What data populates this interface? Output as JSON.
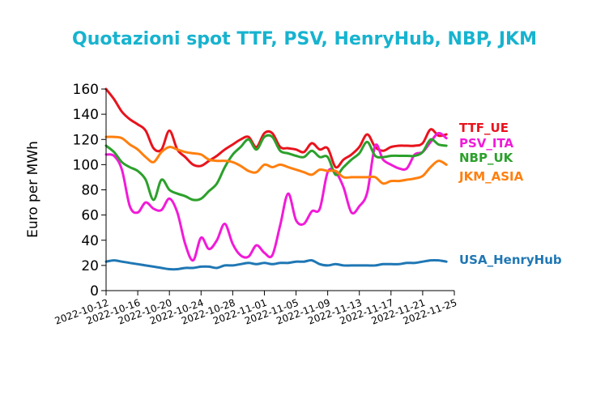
{
  "chart_data": {
    "type": "line",
    "title": "Quotazioni spot TTF, PSV, HenryHub, NBP, JKM",
    "ylabel": "Euro per MWh",
    "xlabel": "",
    "ylim": [
      0,
      160
    ],
    "yticks": [
      0,
      20,
      40,
      60,
      80,
      100,
      120,
      140,
      160
    ],
    "xticks": [
      "2022-10-12",
      "2022-10-16",
      "2022-10-20",
      "2022-10-24",
      "2022-10-28",
      "2022-11-01",
      "2022-11-05",
      "2022-11-09",
      "2022-11-13",
      "2022-11-17",
      "2022-11-21",
      "2022-11-25"
    ],
    "xlim": [
      "2022-10-12",
      "2022-11-25"
    ],
    "grid": false,
    "legend": "right-inline",
    "series": [
      {
        "name": "TTF_UE",
        "color": "#e8131d",
        "x": [
          "2022-10-12",
          "2022-10-13",
          "2022-10-14",
          "2022-10-15",
          "2022-10-16",
          "2022-10-17",
          "2022-10-18",
          "2022-10-19",
          "2022-10-20",
          "2022-10-21",
          "2022-10-22",
          "2022-10-23",
          "2022-10-24",
          "2022-10-25",
          "2022-10-26",
          "2022-10-27",
          "2022-10-28",
          "2022-10-29",
          "2022-10-30",
          "2022-10-31",
          "2022-11-01",
          "2022-11-02",
          "2022-11-03",
          "2022-11-04",
          "2022-11-05",
          "2022-11-06",
          "2022-11-07",
          "2022-11-08",
          "2022-11-09",
          "2022-11-10",
          "2022-11-11",
          "2022-11-12",
          "2022-11-13",
          "2022-11-14",
          "2022-11-15",
          "2022-11-16",
          "2022-11-17",
          "2022-11-18",
          "2022-11-19",
          "2022-11-20",
          "2022-11-21",
          "2022-11-22",
          "2022-11-23",
          "2022-11-24"
        ],
        "values": [
          160,
          152,
          142,
          136,
          132,
          127,
          113,
          112,
          127,
          112,
          106,
          100,
          99,
          103,
          107,
          112,
          116,
          120,
          122,
          114,
          125,
          125,
          114,
          113,
          112,
          110,
          117,
          112,
          113,
          98,
          104,
          108,
          114,
          124,
          114,
          111,
          114,
          115,
          115,
          115,
          117,
          128,
          123,
          124
        ]
      },
      {
        "name": "PSV_ITA",
        "color": "#f21ad8",
        "x": [
          "2022-10-12",
          "2022-10-13",
          "2022-10-14",
          "2022-10-15",
          "2022-10-16",
          "2022-10-17",
          "2022-10-18",
          "2022-10-19",
          "2022-10-20",
          "2022-10-21",
          "2022-10-22",
          "2022-10-23",
          "2022-10-24",
          "2022-10-25",
          "2022-10-26",
          "2022-10-27",
          "2022-10-28",
          "2022-10-29",
          "2022-10-30",
          "2022-10-31",
          "2022-11-01",
          "2022-11-02",
          "2022-11-03",
          "2022-11-04",
          "2022-11-05",
          "2022-11-06",
          "2022-11-07",
          "2022-11-08",
          "2022-11-09",
          "2022-11-10",
          "2022-11-11",
          "2022-11-12",
          "2022-11-13",
          "2022-11-14",
          "2022-11-15",
          "2022-11-16",
          "2022-11-17",
          "2022-11-18",
          "2022-11-19",
          "2022-11-20",
          "2022-11-21",
          "2022-11-22",
          "2022-11-23",
          "2022-11-24"
        ],
        "values": [
          108,
          107,
          96,
          67,
          62,
          70,
          65,
          64,
          73,
          62,
          37,
          24,
          42,
          33,
          40,
          53,
          37,
          28,
          27,
          36,
          30,
          28,
          52,
          77,
          56,
          53,
          63,
          65,
          94,
          94,
          82,
          62,
          67,
          78,
          115,
          104,
          100,
          97,
          97,
          108,
          110,
          118,
          125,
          121
        ]
      },
      {
        "name": "NBP_UK",
        "color": "#2ca02c",
        "x": [
          "2022-10-12",
          "2022-10-13",
          "2022-10-14",
          "2022-10-15",
          "2022-10-16",
          "2022-10-17",
          "2022-10-18",
          "2022-10-19",
          "2022-10-20",
          "2022-10-21",
          "2022-10-22",
          "2022-10-23",
          "2022-10-24",
          "2022-10-25",
          "2022-10-26",
          "2022-10-27",
          "2022-10-28",
          "2022-10-29",
          "2022-10-30",
          "2022-10-31",
          "2022-11-01",
          "2022-11-02",
          "2022-11-03",
          "2022-11-04",
          "2022-11-05",
          "2022-11-06",
          "2022-11-07",
          "2022-11-08",
          "2022-11-09",
          "2022-11-10",
          "2022-11-11",
          "2022-11-12",
          "2022-11-13",
          "2022-11-14",
          "2022-11-15",
          "2022-11-16",
          "2022-11-17",
          "2022-11-18",
          "2022-11-19",
          "2022-11-20",
          "2022-11-21",
          "2022-11-22",
          "2022-11-23",
          "2022-11-24"
        ],
        "values": [
          115,
          110,
          102,
          98,
          95,
          88,
          72,
          88,
          80,
          77,
          75,
          72,
          73,
          79,
          85,
          98,
          108,
          114,
          120,
          112,
          122,
          122,
          111,
          109,
          107,
          106,
          111,
          106,
          106,
          92,
          98,
          104,
          109,
          118,
          107,
          106,
          107,
          107,
          107,
          107,
          110,
          120,
          116,
          115
        ]
      },
      {
        "name": "JKM_ASIA",
        "color": "#ff7f0e",
        "x": [
          "2022-10-12",
          "2022-10-13",
          "2022-10-14",
          "2022-10-15",
          "2022-10-16",
          "2022-10-17",
          "2022-10-18",
          "2022-10-19",
          "2022-10-20",
          "2022-10-21",
          "2022-10-22",
          "2022-10-23",
          "2022-10-24",
          "2022-10-25",
          "2022-10-26",
          "2022-10-27",
          "2022-10-28",
          "2022-10-29",
          "2022-10-30",
          "2022-10-31",
          "2022-11-01",
          "2022-11-02",
          "2022-11-03",
          "2022-11-04",
          "2022-11-05",
          "2022-11-06",
          "2022-11-07",
          "2022-11-08",
          "2022-11-09",
          "2022-11-10",
          "2022-11-11",
          "2022-11-12",
          "2022-11-13",
          "2022-11-14",
          "2022-11-15",
          "2022-11-16",
          "2022-11-17",
          "2022-11-18",
          "2022-11-19",
          "2022-11-20",
          "2022-11-21",
          "2022-11-22",
          "2022-11-23",
          "2022-11-24"
        ],
        "values": [
          122,
          122,
          121,
          116,
          112,
          106,
          102,
          110,
          114,
          112,
          110,
          109,
          108,
          104,
          103,
          103,
          102,
          99,
          95,
          94,
          100,
          98,
          100,
          98,
          96,
          94,
          92,
          96,
          95,
          95,
          90,
          90,
          90,
          90,
          90,
          85,
          87,
          87,
          88,
          89,
          91,
          98,
          103,
          100
        ]
      },
      {
        "name": "USA_HenryHub",
        "color": "#1f77b4",
        "x": [
          "2022-10-12",
          "2022-10-13",
          "2022-10-14",
          "2022-10-15",
          "2022-10-16",
          "2022-10-17",
          "2022-10-18",
          "2022-10-19",
          "2022-10-20",
          "2022-10-21",
          "2022-10-22",
          "2022-10-23",
          "2022-10-24",
          "2022-10-25",
          "2022-10-26",
          "2022-10-27",
          "2022-10-28",
          "2022-10-29",
          "2022-10-30",
          "2022-10-31",
          "2022-11-01",
          "2022-11-02",
          "2022-11-03",
          "2022-11-04",
          "2022-11-05",
          "2022-11-06",
          "2022-11-07",
          "2022-11-08",
          "2022-11-09",
          "2022-11-10",
          "2022-11-11",
          "2022-11-12",
          "2022-11-13",
          "2022-11-14",
          "2022-11-15",
          "2022-11-16",
          "2022-11-17",
          "2022-11-18",
          "2022-11-19",
          "2022-11-20",
          "2022-11-21",
          "2022-11-22",
          "2022-11-23",
          "2022-11-24"
        ],
        "values": [
          23,
          24,
          23,
          22,
          21,
          20,
          19,
          18,
          17,
          17,
          18,
          18,
          19,
          19,
          18,
          20,
          20,
          21,
          22,
          21,
          22,
          21,
          22,
          22,
          23,
          23,
          24,
          21,
          20,
          21,
          20,
          20,
          20,
          20,
          20,
          21,
          21,
          21,
          22,
          22,
          23,
          24,
          24,
          23
        ]
      }
    ]
  }
}
